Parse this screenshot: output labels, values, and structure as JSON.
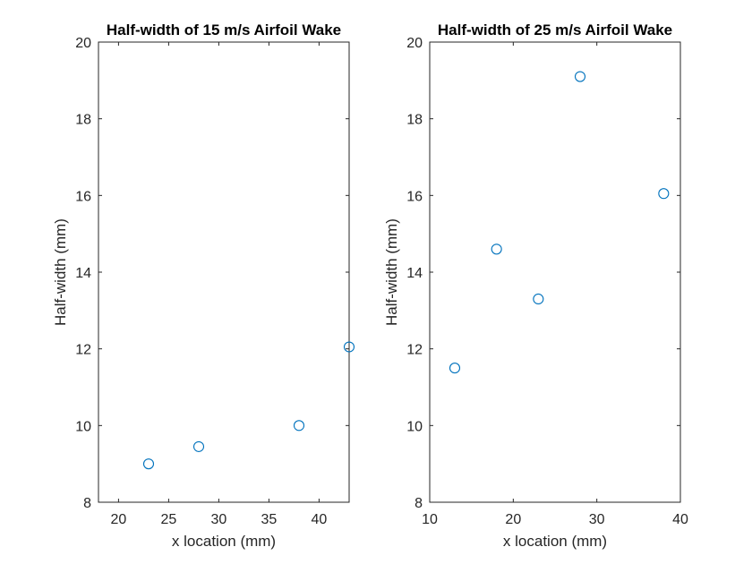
{
  "chart_data": [
    {
      "type": "scatter",
      "title": "Half-width of 15 m/s Airfoil Wake",
      "xlabel": "x location (mm)",
      "ylabel": "Half-width (mm)",
      "xlim": [
        18,
        43
      ],
      "ylim": [
        8,
        20
      ],
      "xticks": [
        "20",
        "25",
        "30",
        "35",
        "40"
      ],
      "yticks": [
        "8",
        "10",
        "12",
        "14",
        "16",
        "18",
        "20"
      ],
      "grid": false,
      "marker": "open-circle",
      "color": "#0072BD",
      "points": [
        {
          "x": 23,
          "y": 9.0
        },
        {
          "x": 28,
          "y": 9.45
        },
        {
          "x": 38,
          "y": 10.0
        },
        {
          "x": 43,
          "y": 12.05
        }
      ]
    },
    {
      "type": "scatter",
      "title": "Half-width of 25 m/s Airfoil Wake",
      "xlabel": "x location (mm)",
      "ylabel": "Half-width (mm)",
      "xlim": [
        10,
        40
      ],
      "ylim": [
        8,
        20
      ],
      "xticks": [
        "10",
        "20",
        "30",
        "40"
      ],
      "yticks": [
        "8",
        "10",
        "12",
        "14",
        "16",
        "18",
        "20"
      ],
      "grid": false,
      "marker": "open-circle",
      "color": "#0072BD",
      "points": [
        {
          "x": 13,
          "y": 11.5
        },
        {
          "x": 18,
          "y": 14.6
        },
        {
          "x": 23,
          "y": 13.3
        },
        {
          "x": 28,
          "y": 19.1
        },
        {
          "x": 38,
          "y": 16.05
        }
      ]
    }
  ]
}
